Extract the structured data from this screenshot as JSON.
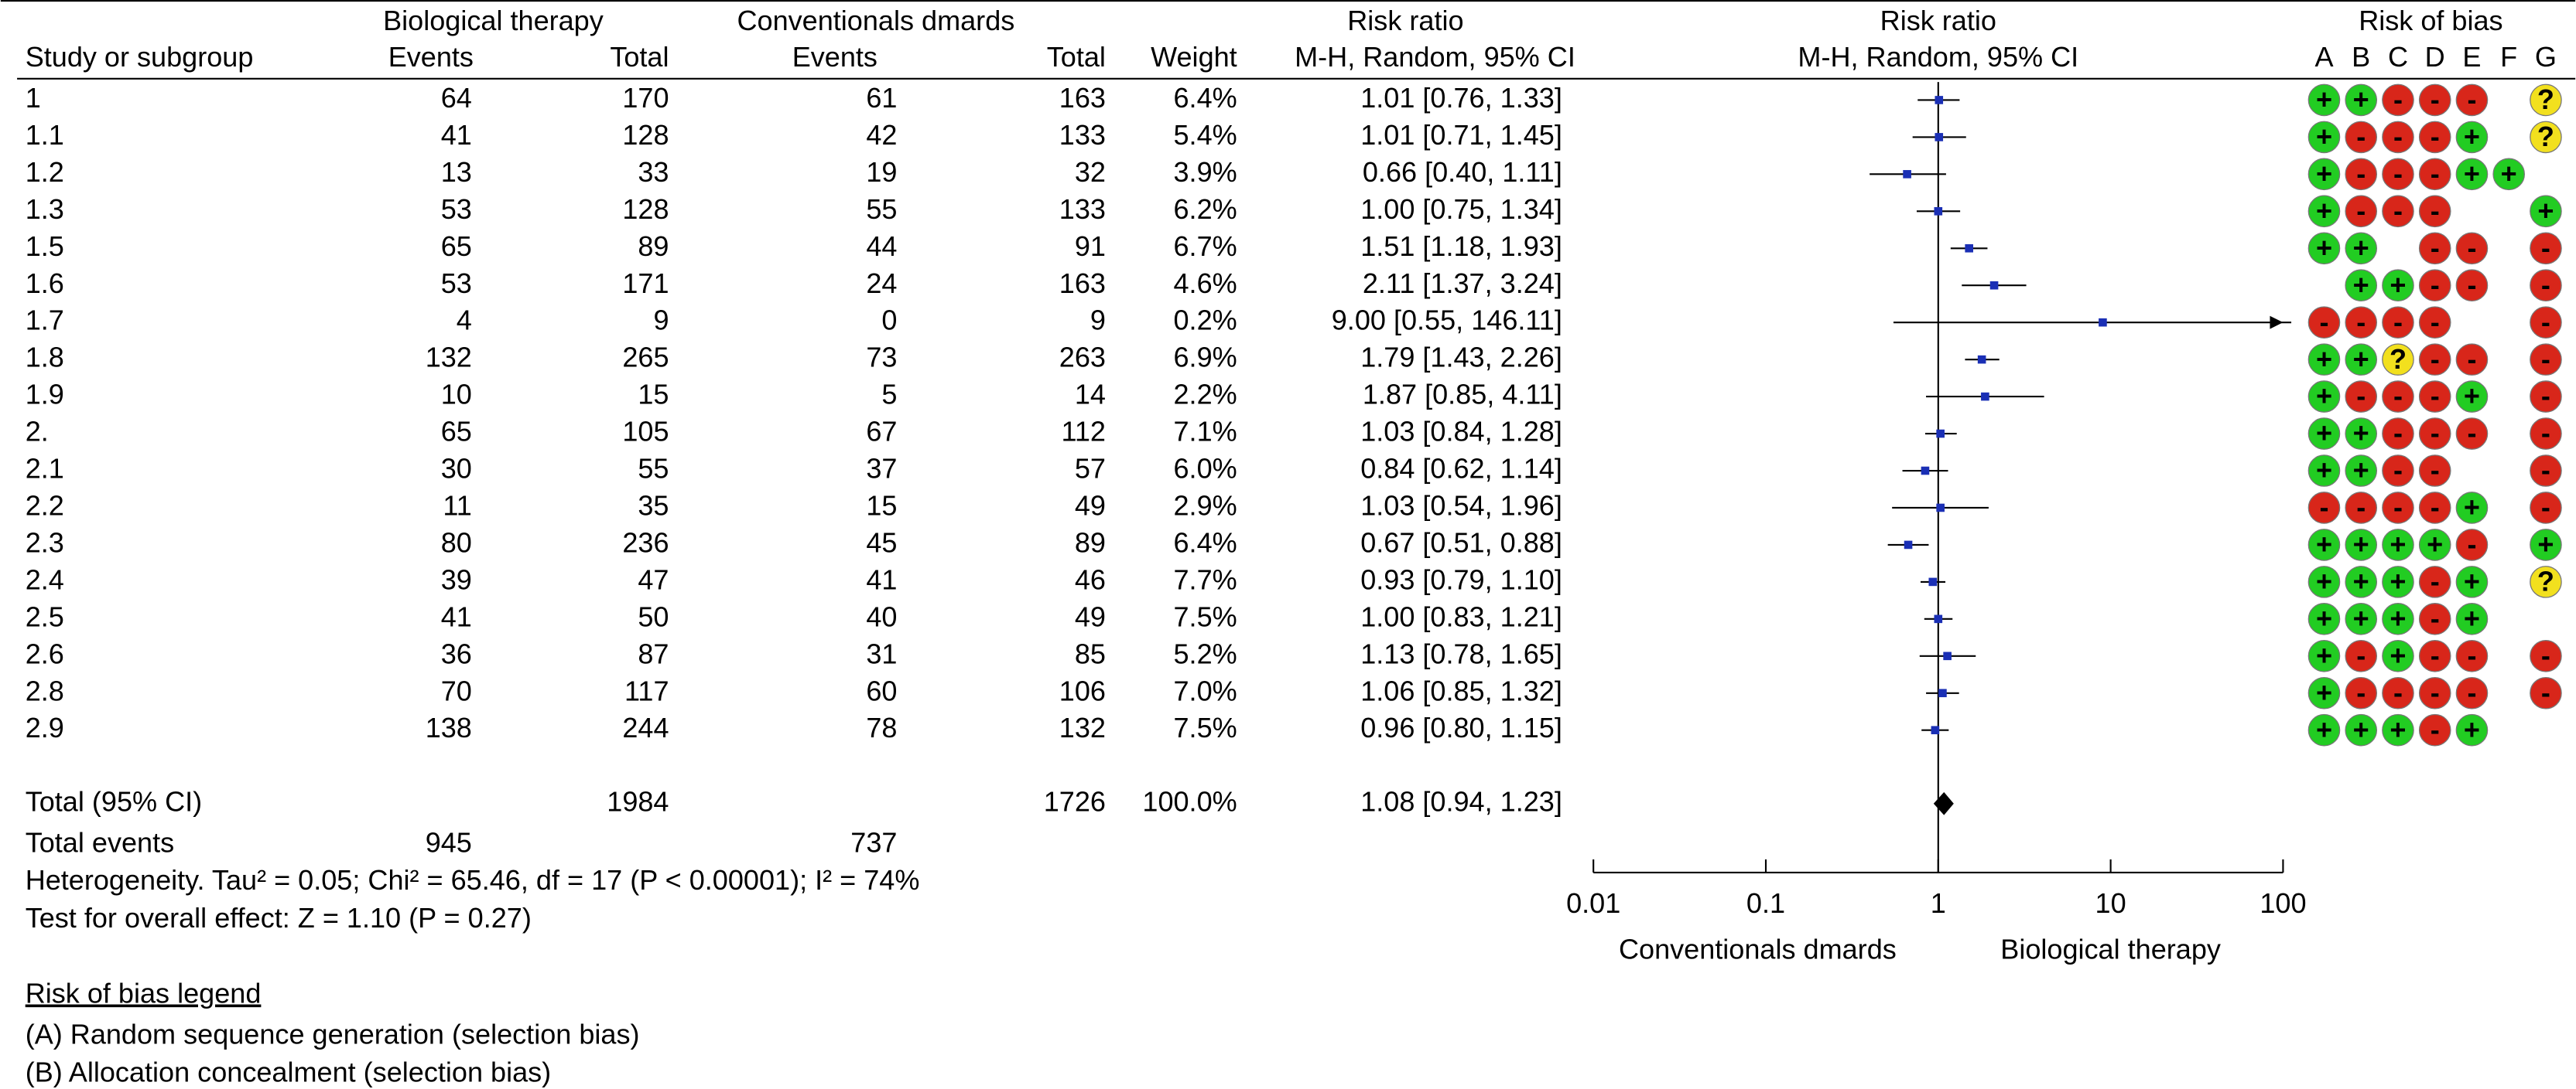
{
  "table": {
    "group_headers": {
      "biological": "Biological therapy",
      "conventional": "Conventionals dmards",
      "risk_ratio": "Risk ratio"
    },
    "column_headers": [
      "Study or subgroup",
      "Events",
      "Total",
      "Events",
      "Total",
      "Weight",
      "M-H, Random, 95% CI"
    ],
    "rows": [
      [
        "1",
        64,
        170,
        61,
        163,
        "6.4%"
      ],
      [
        "1.1",
        41,
        128,
        42,
        133,
        "5.4%"
      ],
      [
        "1.2",
        13,
        33,
        19,
        32,
        "3.9%"
      ],
      [
        "1.3",
        53,
        128,
        55,
        133,
        "6.2%"
      ],
      [
        "1.5",
        65,
        89,
        44,
        91,
        "6.7%"
      ],
      [
        "1.6",
        53,
        171,
        24,
        163,
        "4.6%"
      ],
      [
        "1.7",
        4,
        9,
        0,
        9,
        "0.2%"
      ],
      [
        "1.8",
        132,
        265,
        73,
        263,
        "6.9%"
      ],
      [
        "1.9",
        10,
        15,
        5,
        14,
        "2.2%"
      ],
      [
        "2.",
        65,
        105,
        67,
        112,
        "7.1%"
      ],
      [
        "2.1",
        30,
        55,
        37,
        57,
        "6.0%"
      ],
      [
        "2.2",
        11,
        35,
        15,
        49,
        "2.9%"
      ],
      [
        "2.3",
        80,
        236,
        45,
        89,
        "6.4%"
      ],
      [
        "2.4",
        39,
        47,
        41,
        46,
        "7.7%"
      ],
      [
        "2.5",
        41,
        50,
        40,
        49,
        "7.5%"
      ],
      [
        "2.6",
        36,
        87,
        31,
        85,
        "5.2%"
      ],
      [
        "2.8",
        70,
        117,
        60,
        106,
        "7.0%"
      ],
      [
        "2.9",
        138,
        244,
        78,
        132,
        "7.5%"
      ]
    ],
    "total": {
      "label": "Total (95% CI)",
      "biological_total": 1984,
      "conventional_total": 1726,
      "weight": "100.0%"
    },
    "total_events": {
      "label": "Total events",
      "biological": 945,
      "conventional": 737
    },
    "heterogeneity": "Heterogeneity. Tau² = 0.05; Chi² = 65.46, df = 17 (P < 0.00001); I² = 74%",
    "overall_effect": "Test for overall effect: Z = 1.10 (P = 0.27)"
  },
  "chart_data": {
    "type": "forest",
    "title": "Risk ratio",
    "subtitle": "M-H, Random, 95% CI",
    "values": [
      1.01,
      1.01,
      0.66,
      1.0,
      1.51,
      2.11,
      9.0,
      1.79,
      1.87,
      1.03,
      0.84,
      1.03,
      0.67,
      0.93,
      1.0,
      1.13,
      1.06,
      0.96
    ],
    "ci_lower": [
      0.76,
      0.71,
      0.4,
      0.75,
      1.18,
      1.37,
      0.55,
      1.43,
      0.85,
      0.84,
      0.62,
      0.54,
      0.51,
      0.79,
      0.83,
      0.78,
      0.85,
      0.8
    ],
    "ci_upper": [
      1.33,
      1.45,
      1.11,
      1.34,
      1.93,
      3.24,
      146.11,
      2.26,
      4.11,
      1.28,
      1.14,
      1.96,
      0.88,
      1.1,
      1.21,
      1.65,
      1.32,
      1.15
    ],
    "value_labels": [
      "1.01 [0.76, 1.33]",
      "1.01 [0.71, 1.45]",
      "0.66 [0.40, 1.11]",
      "1.00 [0.75, 1.34]",
      "1.51 [1.18, 1.93]",
      "2.11 [1.37, 3.24]",
      "9.00 [0.55, 146.11]",
      "1.79 [1.43, 2.26]",
      "1.87 [0.85, 4.11]",
      "1.03 [0.84, 1.28]",
      "0.84 [0.62, 1.14]",
      "1.03 [0.54, 1.96]",
      "0.67 [0.51, 0.88]",
      "0.93 [0.79, 1.10]",
      "1.00 [0.83, 1.21]",
      "1.13 [0.78, 1.65]",
      "1.06 [0.85, 1.32]",
      "0.96 [0.80, 1.15]"
    ],
    "total_value": 1.08,
    "total_ci": [
      0.94,
      1.23
    ],
    "total_label": "1.08 [0.94, 1.23]",
    "xlim": [
      0.01,
      100
    ],
    "xticks": [
      0.01,
      0.1,
      1,
      10,
      100
    ],
    "log_scale": true,
    "color": "#1a2fb5",
    "left_label": "Conventionals dmards",
    "right_label": "Biological therapy"
  },
  "risk_of_bias": {
    "title": "Risk of bias",
    "domains": [
      "A",
      "B",
      "C",
      "D",
      "E",
      "F",
      "G"
    ],
    "rows": [
      [
        "+",
        "+",
        "-",
        "-",
        "-",
        null,
        "?"
      ],
      [
        "+",
        "-",
        "-",
        "-",
        "+",
        null,
        "?"
      ],
      [
        "+",
        "-",
        "-",
        "-",
        "+",
        "+",
        null
      ],
      [
        "+",
        "-",
        "-",
        "-",
        null,
        null,
        "+"
      ],
      [
        "+",
        "+",
        null,
        "-",
        "-",
        null,
        "-"
      ],
      [
        null,
        "+",
        "+",
        "-",
        "-",
        null,
        "-"
      ],
      [
        "-",
        "-",
        "-",
        "-",
        null,
        null,
        "-"
      ],
      [
        "+",
        "+",
        "?",
        "-",
        "-",
        null,
        "-"
      ],
      [
        "+",
        "-",
        "-",
        "-",
        "+",
        null,
        "-"
      ],
      [
        "+",
        "+",
        "-",
        "-",
        "-",
        null,
        "-"
      ],
      [
        "+",
        "+",
        "-",
        "-",
        null,
        null,
        "-"
      ],
      [
        "-",
        "-",
        "-",
        "-",
        "+",
        null,
        "-"
      ],
      [
        "+",
        "+",
        "+",
        "+",
        "-",
        null,
        "+"
      ],
      [
        "+",
        "+",
        "+",
        "-",
        "+",
        null,
        "?"
      ],
      [
        "+",
        "+",
        "+",
        "-",
        "+",
        null,
        null
      ],
      [
        "+",
        "-",
        "+",
        "-",
        "-",
        null,
        "-"
      ],
      [
        "+",
        "-",
        "-",
        "-",
        "-",
        null,
        "-"
      ],
      [
        "+",
        "+",
        "+",
        "-",
        "+",
        null,
        null
      ]
    ],
    "colors": {
      "+": "#22cc22",
      "-": "#d8261a",
      "?": "#f2e01e"
    }
  },
  "legend": {
    "title": "Risk of bias legend",
    "items": [
      "(A) Random sequence generation (selection bias)",
      "(B) Allocation concealment (selection bias)"
    ]
  }
}
